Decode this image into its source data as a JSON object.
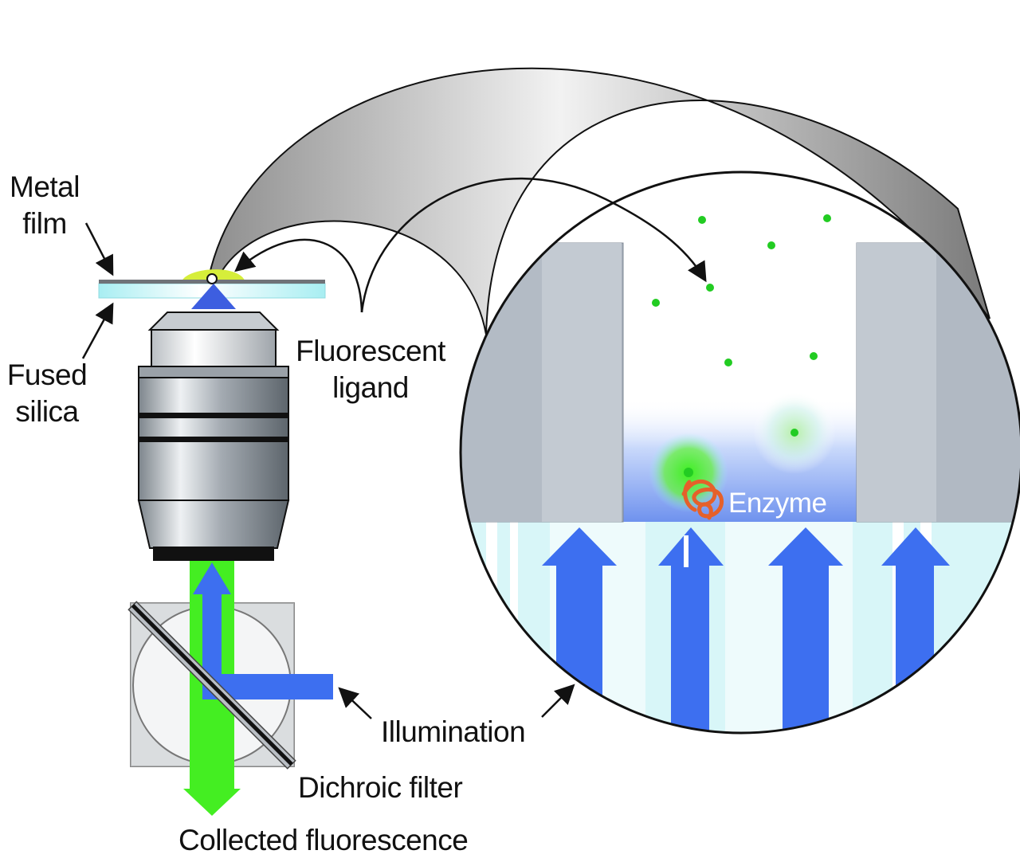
{
  "labels": {
    "metal_film": "Metal\nfilm",
    "fused_silica": "Fused\nsilica",
    "fluorescent_ligand": "Fluorescent\nligand",
    "enzyme": "Enzyme",
    "illumination": "Illumination",
    "dichroic_filter": "Dichroic filter",
    "collected_fluorescence": "Collected fluorescence"
  },
  "colors": {
    "illumination_blue": "#3d6ff0",
    "fluorescence_green": "#44ee22",
    "ligand_green": "#22cc22",
    "silica_cyan": "#c8f2f4",
    "metal_gray": "#6f7378",
    "enzyme_orange": "#e5602a",
    "waveguide_gray": "#aeb5bf"
  }
}
